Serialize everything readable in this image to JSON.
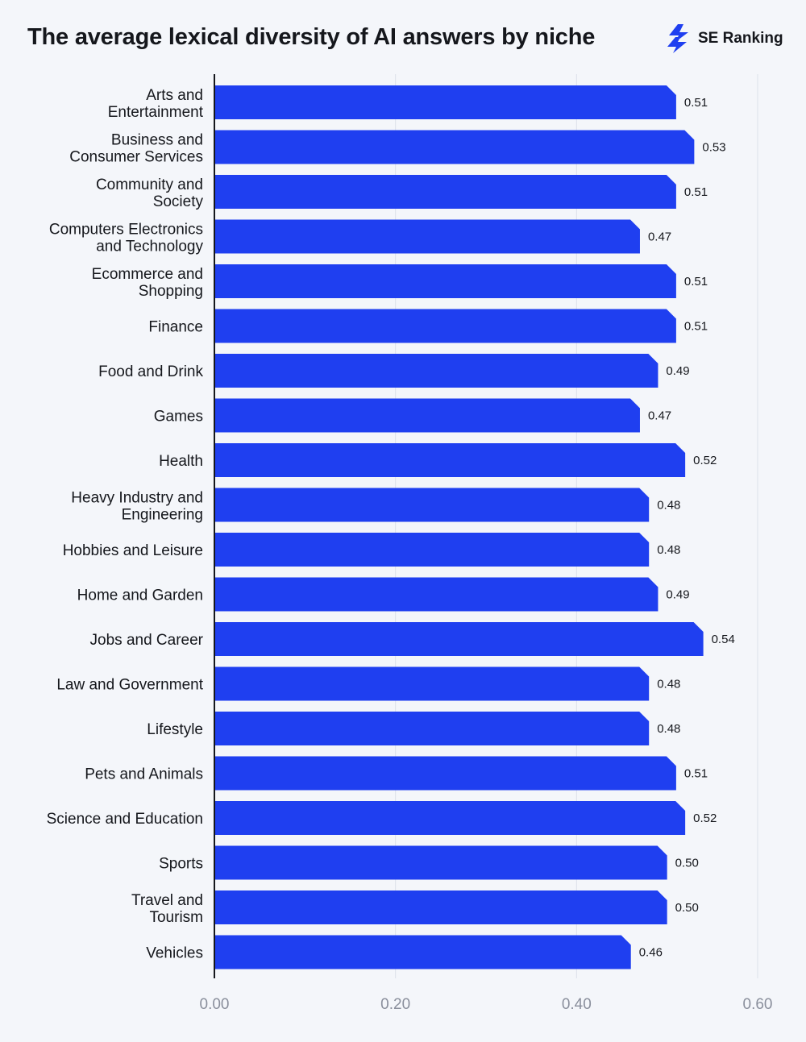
{
  "header": {
    "title": "The average lexical diversity of AI answers by niche",
    "brand_name": "SE Ranking",
    "brand_icon": "lightning-bolt-icon"
  },
  "colors": {
    "bar": "#1f3ff0",
    "grid": "#dde1ea",
    "axis": "#15171c",
    "background": "#f4f6fa"
  },
  "chart_data": {
    "type": "bar",
    "orientation": "horizontal",
    "title": "The average lexical diversity of AI answers by niche",
    "categories": [
      "Arts and Entertainment",
      "Business and Consumer Services",
      "Community and Society",
      "Computers Electronics and Technology",
      "Ecommerce and Shopping",
      "Finance",
      "Food and Drink",
      "Games",
      "Health",
      "Heavy Industry and Engineering",
      "Hobbies and Leisure",
      "Home and Garden",
      "Jobs and Career",
      "Law and Government",
      "Lifestyle",
      "Pets and Animals",
      "Science and Education",
      "Sports",
      "Travel and Tourism",
      "Vehicles"
    ],
    "category_label_lines": [
      [
        "Arts and",
        "Entertainment"
      ],
      [
        "Business and",
        "Consumer Services"
      ],
      [
        "Community and",
        "Society"
      ],
      [
        "Computers Electronics",
        "and Technology"
      ],
      [
        "Ecommerce and",
        "Shopping"
      ],
      [
        "Finance"
      ],
      [
        "Food and Drink"
      ],
      [
        "Games"
      ],
      [
        "Health"
      ],
      [
        "Heavy Industry and",
        "Engineering"
      ],
      [
        "Hobbies and Leisure"
      ],
      [
        "Home and Garden"
      ],
      [
        "Jobs and Career"
      ],
      [
        "Law and Government"
      ],
      [
        "Lifestyle"
      ],
      [
        "Pets and Animals"
      ],
      [
        "Science and Education"
      ],
      [
        "Sports"
      ],
      [
        "Travel and",
        "Tourism"
      ],
      [
        "Vehicles"
      ]
    ],
    "values": [
      0.51,
      0.53,
      0.51,
      0.47,
      0.51,
      0.51,
      0.49,
      0.47,
      0.52,
      0.48,
      0.48,
      0.49,
      0.54,
      0.48,
      0.48,
      0.51,
      0.52,
      0.5,
      0.5,
      0.46
    ],
    "value_labels": [
      "0.51",
      "0.53",
      "0.51",
      "0.47",
      "0.51",
      "0.51",
      "0.49",
      "0.47",
      "0.52",
      "0.48",
      "0.48",
      "0.49",
      "0.54",
      "0.48",
      "0.48",
      "0.51",
      "0.52",
      "0.50",
      "0.50",
      "0.46"
    ],
    "xlim": [
      0,
      0.6
    ],
    "xticks": [
      0,
      0.2,
      0.4,
      0.6
    ],
    "xtick_labels": [
      "0.00",
      "0.20",
      "0.40",
      "0.60"
    ],
    "xlabel": "",
    "ylabel": "",
    "grid": true,
    "legend": "none"
  }
}
